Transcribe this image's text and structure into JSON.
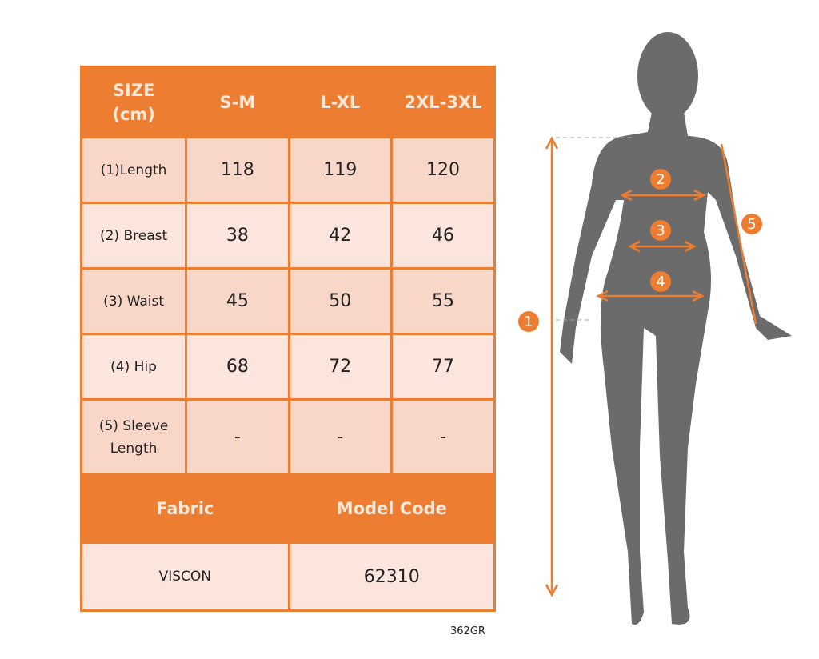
{
  "header": {
    "size_label": "SIZE\n(cm)",
    "sizes": [
      "S-M",
      "L-XL",
      "2XL-3XL"
    ]
  },
  "rows": [
    {
      "label": "(1)Length",
      "values": [
        "118",
        "119",
        "120"
      ]
    },
    {
      "label": "(2) Breast",
      "values": [
        "38",
        "42",
        "46"
      ]
    },
    {
      "label": "(3) Waist",
      "values": [
        "45",
        "50",
        "55"
      ]
    },
    {
      "label": "(4) Hip",
      "values": [
        "68",
        "72",
        "77"
      ]
    },
    {
      "label": "(5) Sleeve Length",
      "values": [
        "-",
        "-",
        "-"
      ]
    }
  ],
  "footer": {
    "fabric_label": "Fabric",
    "model_code_label": "Model Code",
    "fabric": "VISCON",
    "model_code": "62310"
  },
  "product_code": "362GR",
  "markers": [
    "1",
    "2",
    "3",
    "4",
    "5"
  ],
  "colors": {
    "accent": "#ed7d31",
    "cell_dark": "#f8d7c9",
    "cell_light": "#fbe5dc",
    "silhouette": "#6b6b6b"
  }
}
